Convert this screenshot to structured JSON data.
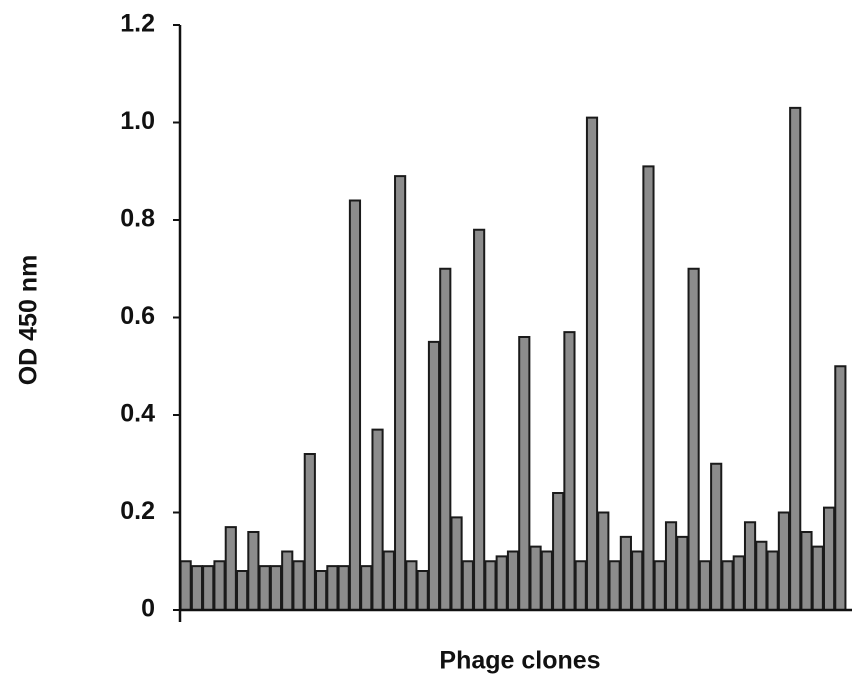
{
  "chart_data": {
    "type": "bar",
    "xlabel": "Phage clones",
    "ylabel": "OD 450 nm",
    "categories": [
      null,
      null,
      null,
      null,
      null,
      null,
      null,
      null,
      null,
      null,
      null,
      null,
      null,
      null,
      null,
      null,
      null,
      null,
      null,
      null,
      null,
      null,
      null,
      null,
      null,
      null,
      null,
      null,
      null,
      null,
      null,
      null,
      null,
      null,
      null,
      null,
      null,
      null,
      null,
      null,
      null,
      null,
      null,
      null,
      null,
      null,
      null,
      null,
      null,
      null,
      null,
      null,
      null,
      null,
      null,
      null,
      null,
      null,
      null
    ],
    "values": [
      0.1,
      0.09,
      0.09,
      0.1,
      0.17,
      0.08,
      0.16,
      0.09,
      0.09,
      0.12,
      0.1,
      0.32,
      0.08,
      0.09,
      0.09,
      0.84,
      0.09,
      0.37,
      0.12,
      0.89,
      0.1,
      0.08,
      0.55,
      0.7,
      0.19,
      0.1,
      0.78,
      0.1,
      0.11,
      0.12,
      0.56,
      0.13,
      0.12,
      0.24,
      0.57,
      0.1,
      1.01,
      0.2,
      0.1,
      0.15,
      0.12,
      0.91,
      0.1,
      0.18,
      0.15,
      0.7,
      0.1,
      0.3,
      0.1,
      0.11,
      0.18,
      0.14,
      0.12,
      0.2,
      1.03,
      0.16,
      0.13,
      0.21,
      0.5
    ],
    "color": "#8c8c8c",
    "ylim": [
      0,
      1.2
    ],
    "yticks": [
      0,
      0.2,
      0.4,
      0.6,
      0.8,
      {
        "value": 1,
        "label": "1.0"
      },
      1.2
    ],
    "grid": false
  }
}
